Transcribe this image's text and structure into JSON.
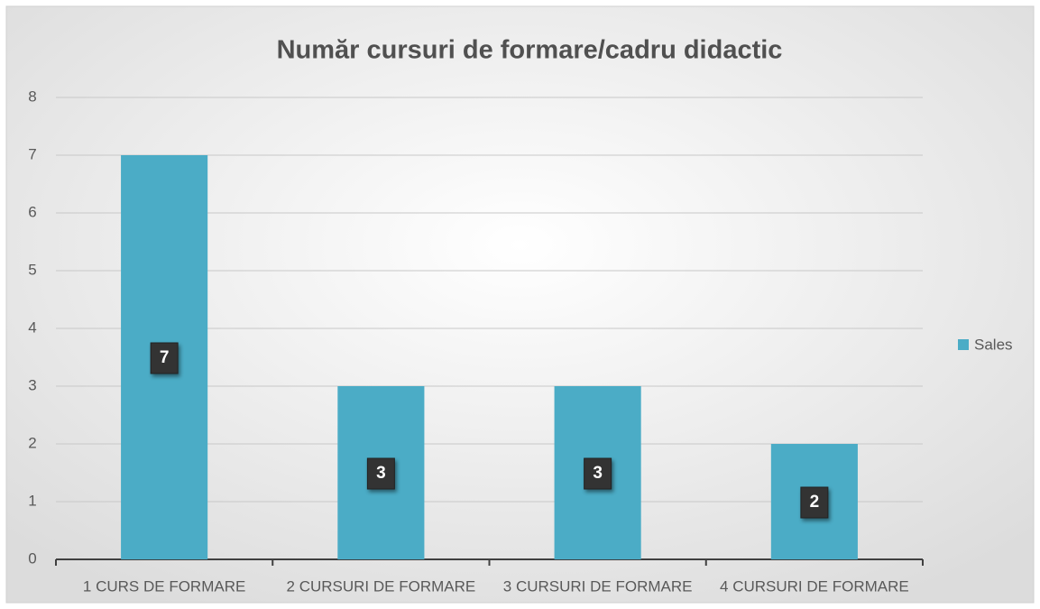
{
  "chart_data": {
    "type": "bar",
    "title": "Număr cursuri de formare/cadru didactic",
    "categories": [
      "1 CURS DE FORMARE",
      "2 CURSURI DE FORMARE",
      "3 CURSURI DE FORMARE",
      "4 CURSURI DE FORMARE"
    ],
    "series": [
      {
        "name": "Sales",
        "color": "#4bacc6",
        "values": [
          7,
          3,
          3,
          2
        ]
      }
    ],
    "ylim": [
      0,
      8
    ],
    "yticks": [
      0,
      1,
      2,
      3,
      4,
      5,
      6,
      7,
      8
    ],
    "grid": true,
    "legend": "right"
  }
}
